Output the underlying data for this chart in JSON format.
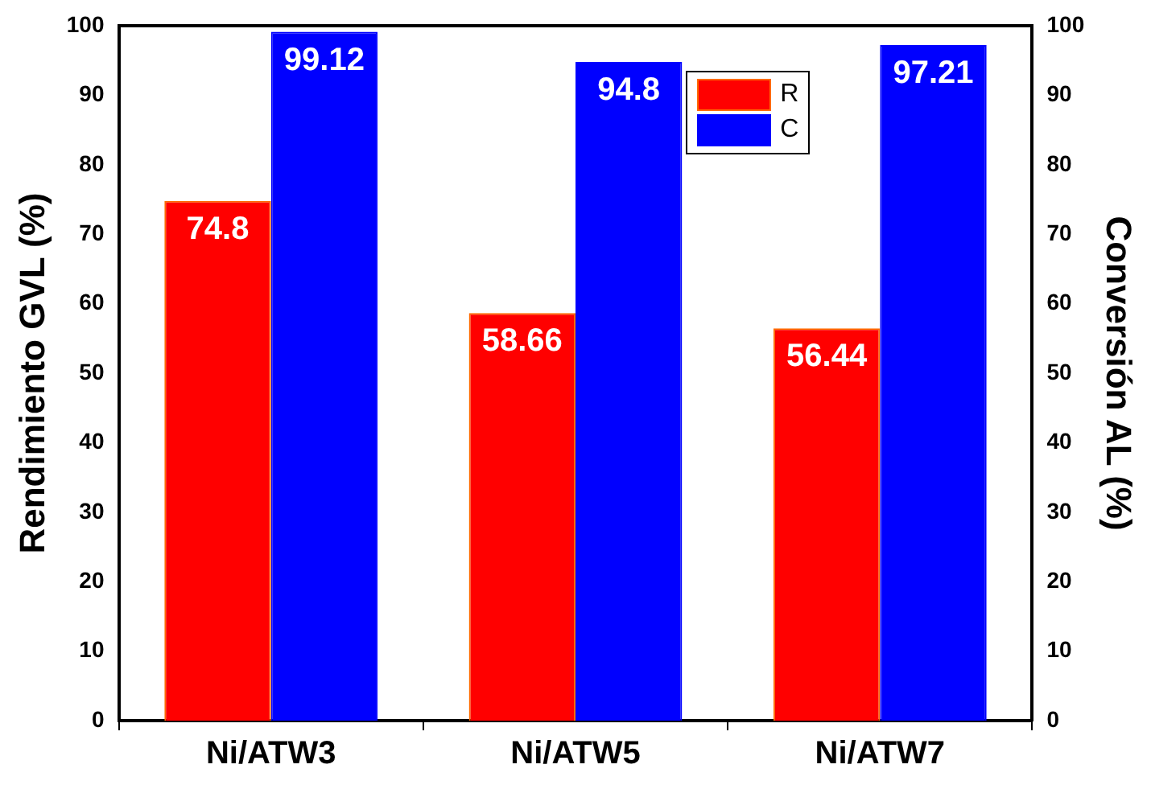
{
  "chart_data": {
    "type": "bar",
    "categories": [
      "Ni/ATW3",
      "Ni/ATW5",
      "Ni/ATW7"
    ],
    "ylabel": "Rendimiento GVL (%)",
    "y2label": "Conversión AL (%)",
    "series": [
      {
        "name": "R",
        "color": "#ff0000",
        "values": [
          74.8,
          58.66,
          56.44
        ]
      },
      {
        "name": "C",
        "color": "#0000ff",
        "values": [
          99.12,
          94.8,
          97.21
        ],
        "axis": "y2"
      }
    ],
    "ylim": [
      0,
      100
    ],
    "yticks": [
      0,
      10,
      20,
      30,
      40,
      50,
      60,
      70,
      80,
      90,
      100
    ],
    "y2lim": [
      0,
      100
    ],
    "y2ticks": [
      0,
      10,
      20,
      30,
      40,
      50,
      60,
      70,
      80,
      90,
      100
    ],
    "data_labels": true,
    "legend": "top right",
    "grid": false
  }
}
